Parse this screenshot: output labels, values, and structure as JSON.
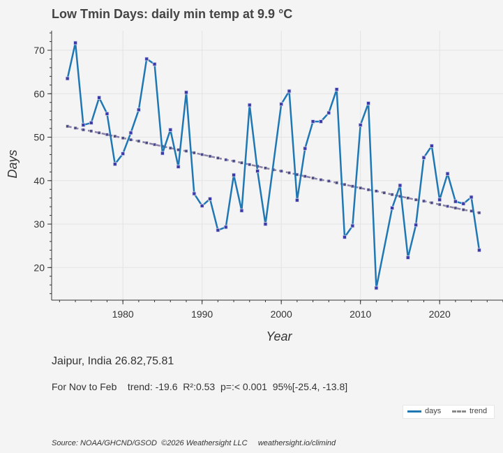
{
  "title": "Low Tmin Days: daily min temp at 9.9 °C",
  "location": "Jaipur, India 26.82,75.81",
  "stats": "For Nov to Feb    trend: -19.6  R²:0.53  p=:< 0.001  95%[-25.4, -13.8]",
  "source": "Source: NOAA/GHCND/GSOD  ©2026 Weathersight LLC     weathersight.io/climind",
  "colors": {
    "days_line": "#1f77b4",
    "days_marker_fill": "#3a3aa8",
    "trend_line": "#8a7fa8",
    "grid": "#e3e3e3",
    "background": "#f4f4f4"
  },
  "chart_data": {
    "type": "line",
    "xlabel": "Year",
    "ylabel": "Days",
    "xlim": [
      1971,
      2028
    ],
    "ylim": [
      12.5,
      74.5
    ],
    "xticks": [
      1980,
      1990,
      2000,
      2010,
      2020
    ],
    "yticks": [
      20,
      30,
      40,
      50,
      60,
      70
    ],
    "grid": true,
    "legend_position": "bottom-right",
    "series": [
      {
        "name": "days",
        "style": "solid",
        "markers": true,
        "x": [
          1973,
          1974,
          1975,
          1976,
          1977,
          1978,
          1979,
          1980,
          1981,
          1982,
          1983,
          1984,
          1985,
          1986,
          1987,
          1988,
          1989,
          1990,
          1991,
          1992,
          1993,
          1994,
          1995,
          1996,
          1997,
          1998,
          2000,
          2001,
          2002,
          2003,
          2004,
          2005,
          2006,
          2007,
          2008,
          2009,
          2010,
          2011,
          2012,
          2014,
          2015,
          2016,
          2017,
          2018,
          2019,
          2020,
          2021,
          2022,
          2023,
          2024,
          2025
        ],
        "y": [
          63.5,
          71.7,
          52.8,
          53.3,
          59.1,
          55.4,
          43.8,
          46.2,
          51.0,
          56.3,
          68.0,
          66.8,
          46.3,
          51.7,
          43.2,
          60.3,
          37.0,
          34.2,
          35.8,
          28.6,
          29.3,
          41.3,
          33.1,
          57.4,
          42.2,
          30.0,
          57.6,
          60.6,
          35.5,
          47.4,
          53.6,
          53.6,
          55.6,
          61.0,
          27.0,
          29.6,
          52.8,
          57.8,
          15.3,
          33.7,
          38.9,
          22.3,
          29.8,
          45.3,
          48.0,
          35.6,
          41.6,
          35.2,
          34.7,
          36.2,
          24.0
        ]
      },
      {
        "name": "trend",
        "style": "dashed",
        "markers": true,
        "x": [
          1973,
          1974,
          1975,
          1976,
          1977,
          1978,
          1979,
          1980,
          1981,
          1982,
          1983,
          1984,
          1985,
          1986,
          1987,
          1988,
          1989,
          1990,
          1991,
          1992,
          1993,
          1994,
          1995,
          1996,
          1997,
          1998,
          1999,
          2000,
          2001,
          2002,
          2003,
          2004,
          2005,
          2006,
          2007,
          2008,
          2009,
          2010,
          2011,
          2012,
          2013,
          2014,
          2015,
          2016,
          2017,
          2018,
          2019,
          2020,
          2021,
          2022,
          2023,
          2024,
          2025
        ],
        "y": [
          52.5,
          52.1,
          51.7,
          51.4,
          51.0,
          50.6,
          50.2,
          49.8,
          49.4,
          49.1,
          48.7,
          48.3,
          47.9,
          47.5,
          47.1,
          46.8,
          46.4,
          46.0,
          45.6,
          45.2,
          44.8,
          44.5,
          44.1,
          43.7,
          43.3,
          42.9,
          42.5,
          42.2,
          41.8,
          41.4,
          41.0,
          40.6,
          40.2,
          39.9,
          39.5,
          39.1,
          38.7,
          38.3,
          37.9,
          37.6,
          37.2,
          36.8,
          36.4,
          36.0,
          35.6,
          35.3,
          34.9,
          34.5,
          34.1,
          33.7,
          33.3,
          33.0,
          32.6
        ]
      }
    ]
  }
}
